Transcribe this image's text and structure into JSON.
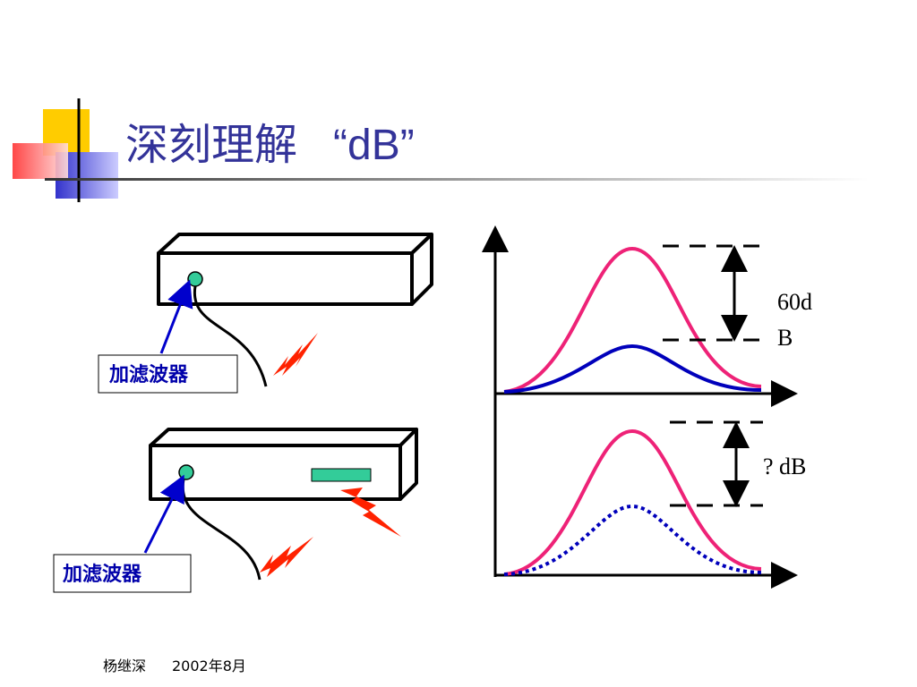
{
  "header": {
    "title": "深刻理解",
    "title_quote": "“dB”"
  },
  "diagram": {
    "filter_labels": [
      "加滤波器",
      "加滤波器"
    ],
    "top_difference": [
      "60d",
      "B"
    ],
    "bottom_difference": "? dB"
  },
  "footer": {
    "author": "杨继深",
    "date": "2002年8月"
  }
}
